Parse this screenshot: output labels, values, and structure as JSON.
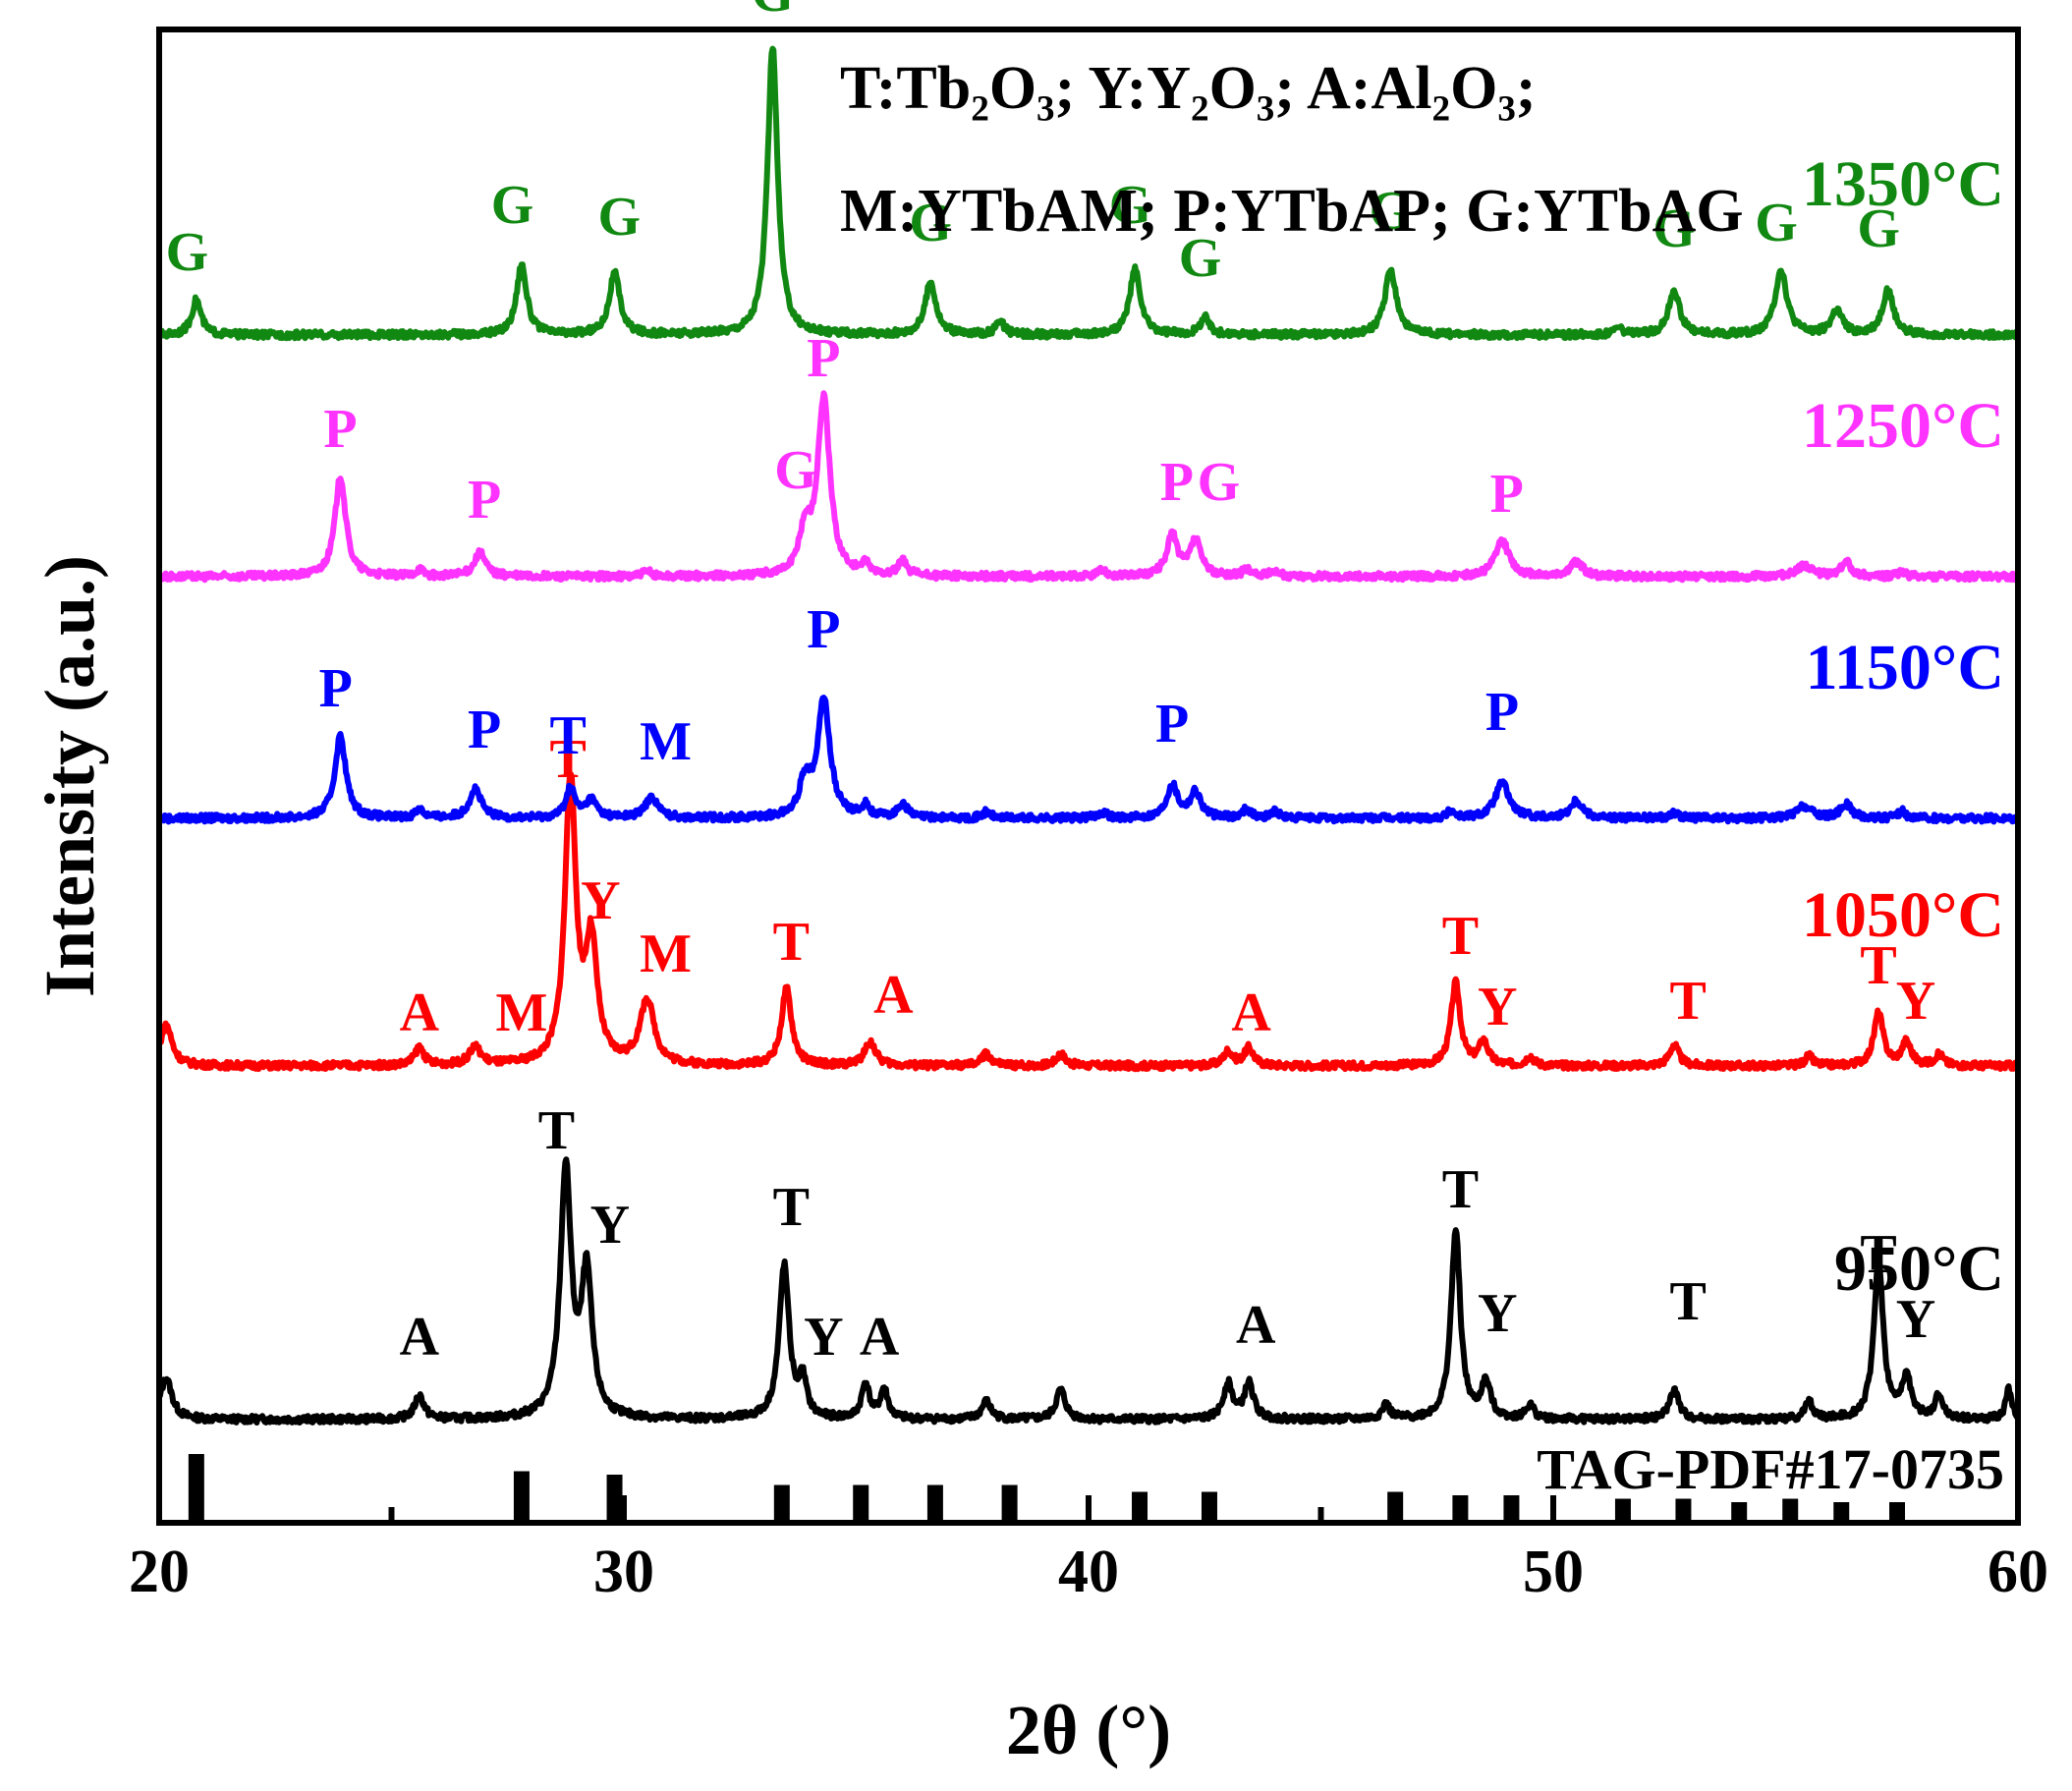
{
  "chart_data": {
    "type": "line",
    "title": "",
    "xlabel": "2θ (°)",
    "ylabel": "Intensity (a.u.)",
    "xlim": [
      20,
      60
    ],
    "xticks": [
      20,
      30,
      40,
      50,
      60
    ],
    "legend_lines": [
      "T:Tb₂O₃;   Y:Y₂O₃;   A:Al₂O₃;",
      "M:YTbAM; P:YTbAP; G:YTbAG"
    ],
    "reference": {
      "name": "TAG-PDF#17-0735",
      "color": "#000000",
      "peaks": [
        {
          "x": 20.8,
          "h": 1.0
        },
        {
          "x": 27.8,
          "h": 0.75
        },
        {
          "x": 29.8,
          "h": 0.7
        },
        {
          "x": 33.4,
          "h": 0.55
        },
        {
          "x": 35.1,
          "h": 0.55
        },
        {
          "x": 36.7,
          "h": 0.55
        },
        {
          "x": 38.3,
          "h": 0.55
        },
        {
          "x": 41.1,
          "h": 0.45
        },
        {
          "x": 42.6,
          "h": 0.45
        },
        {
          "x": 46.6,
          "h": 0.45
        },
        {
          "x": 48.0,
          "h": 0.4
        },
        {
          "x": 49.1,
          "h": 0.4
        },
        {
          "x": 51.5,
          "h": 0.35
        },
        {
          "x": 52.8,
          "h": 0.35
        },
        {
          "x": 54.0,
          "h": 0.3
        },
        {
          "x": 55.1,
          "h": 0.35
        },
        {
          "x": 56.2,
          "h": 0.3
        },
        {
          "x": 57.4,
          "h": 0.3
        }
      ]
    },
    "series": [
      {
        "name": "950°C",
        "color": "#000000",
        "baseline": 0,
        "peaks": [
          {
            "x": 20.15,
            "h": 0.35,
            "w": 0.15
          },
          {
            "x": 25.6,
            "h": 0.2,
            "w": 0.12
          },
          {
            "x": 28.75,
            "h": 2.1,
            "w": 0.14
          },
          {
            "x": 29.2,
            "h": 1.2,
            "w": 0.14
          },
          {
            "x": 33.45,
            "h": 1.3,
            "w": 0.13
          },
          {
            "x": 33.85,
            "h": 0.3,
            "w": 0.1
          },
          {
            "x": 35.2,
            "h": 0.3,
            "w": 0.1
          },
          {
            "x": 35.6,
            "h": 0.25,
            "w": 0.1
          },
          {
            "x": 37.8,
            "h": 0.15,
            "w": 0.12
          },
          {
            "x": 39.4,
            "h": 0.25,
            "w": 0.12
          },
          {
            "x": 43.0,
            "h": 0.3,
            "w": 0.12
          },
          {
            "x": 43.45,
            "h": 0.3,
            "w": 0.12
          },
          {
            "x": 46.4,
            "h": 0.12,
            "w": 0.1
          },
          {
            "x": 47.9,
            "h": 1.6,
            "w": 0.12
          },
          {
            "x": 48.55,
            "h": 0.3,
            "w": 0.12
          },
          {
            "x": 49.5,
            "h": 0.12,
            "w": 0.1
          },
          {
            "x": 52.6,
            "h": 0.25,
            "w": 0.12
          },
          {
            "x": 55.5,
            "h": 0.15,
            "w": 0.1
          },
          {
            "x": 57.0,
            "h": 1.35,
            "w": 0.12
          },
          {
            "x": 57.6,
            "h": 0.35,
            "w": 0.12
          },
          {
            "x": 58.3,
            "h": 0.2,
            "w": 0.1
          },
          {
            "x": 59.8,
            "h": 0.25,
            "w": 0.08
          }
        ],
        "labels": [
          {
            "text": "A",
            "x": 25.6,
            "y": 0.55
          },
          {
            "text": "T",
            "x": 28.55,
            "y": 2.3
          },
          {
            "text": "Y",
            "x": 29.7,
            "y": 1.5
          },
          {
            "text": "T",
            "x": 33.6,
            "y": 1.65
          },
          {
            "text": "Y",
            "x": 34.3,
            "y": 0.55
          },
          {
            "text": "A",
            "x": 35.5,
            "y": 0.55
          },
          {
            "text": "A",
            "x": 43.6,
            "y": 0.65
          },
          {
            "text": "T",
            "x": 48.0,
            "y": 1.8
          },
          {
            "text": "Y",
            "x": 48.8,
            "y": 0.75
          },
          {
            "text": "T",
            "x": 52.9,
            "y": 0.85
          },
          {
            "text": "T",
            "x": 57.0,
            "y": 1.25
          },
          {
            "text": "Y",
            "x": 57.8,
            "y": 0.7
          }
        ]
      },
      {
        "name": "1050°C",
        "color": "#ff0000",
        "baseline": 3.0,
        "peaks": [
          {
            "x": 20.15,
            "h": 0.35,
            "w": 0.15
          },
          {
            "x": 25.6,
            "h": 0.15,
            "w": 0.12
          },
          {
            "x": 26.8,
            "h": 0.15,
            "w": 0.15
          },
          {
            "x": 28.85,
            "h": 2.4,
            "w": 0.14
          },
          {
            "x": 29.3,
            "h": 1.0,
            "w": 0.15
          },
          {
            "x": 30.5,
            "h": 0.55,
            "w": 0.18
          },
          {
            "x": 33.5,
            "h": 0.65,
            "w": 0.13
          },
          {
            "x": 35.3,
            "h": 0.2,
            "w": 0.14
          },
          {
            "x": 37.8,
            "h": 0.1,
            "w": 0.12
          },
          {
            "x": 39.4,
            "h": 0.1,
            "w": 0.12
          },
          {
            "x": 43.0,
            "h": 0.12,
            "w": 0.12
          },
          {
            "x": 43.45,
            "h": 0.15,
            "w": 0.12
          },
          {
            "x": 47.9,
            "h": 0.7,
            "w": 0.12
          },
          {
            "x": 48.5,
            "h": 0.2,
            "w": 0.12
          },
          {
            "x": 49.5,
            "h": 0.08,
            "w": 0.1
          },
          {
            "x": 52.6,
            "h": 0.18,
            "w": 0.12
          },
          {
            "x": 55.5,
            "h": 0.08,
            "w": 0.1
          },
          {
            "x": 57.0,
            "h": 0.45,
            "w": 0.12
          },
          {
            "x": 57.6,
            "h": 0.2,
            "w": 0.12
          },
          {
            "x": 58.3,
            "h": 0.1,
            "w": 0.1
          }
        ],
        "labels": [
          {
            "text": "A",
            "x": 25.6,
            "y": 0.3
          },
          {
            "text": "M",
            "x": 27.8,
            "y": 0.3
          },
          {
            "text": "T",
            "x": 28.8,
            "y": 2.45
          },
          {
            "text": "Y",
            "x": 29.5,
            "y": 1.25
          },
          {
            "text": "M",
            "x": 30.9,
            "y": 0.8
          },
          {
            "text": "T",
            "x": 33.6,
            "y": 0.9
          },
          {
            "text": "A",
            "x": 35.8,
            "y": 0.45
          },
          {
            "text": "A",
            "x": 43.5,
            "y": 0.3
          },
          {
            "text": "T",
            "x": 48.0,
            "y": 0.95
          },
          {
            "text": "Y",
            "x": 48.8,
            "y": 0.35
          },
          {
            "text": "T",
            "x": 52.9,
            "y": 0.4
          },
          {
            "text": "T",
            "x": 57.0,
            "y": 0.7
          },
          {
            "text": "Y",
            "x": 57.8,
            "y": 0.4
          }
        ]
      },
      {
        "name": "1150°C",
        "color": "#0000ff",
        "baseline": 5.1,
        "peaks": [
          {
            "x": 23.9,
            "h": 0.7,
            "w": 0.14
          },
          {
            "x": 25.6,
            "h": 0.08,
            "w": 0.1
          },
          {
            "x": 26.8,
            "h": 0.25,
            "w": 0.15
          },
          {
            "x": 28.85,
            "h": 0.25,
            "w": 0.12
          },
          {
            "x": 29.3,
            "h": 0.15,
            "w": 0.14
          },
          {
            "x": 30.6,
            "h": 0.18,
            "w": 0.16
          },
          {
            "x": 33.9,
            "h": 0.3,
            "w": 0.14
          },
          {
            "x": 34.3,
            "h": 1.0,
            "w": 0.16
          },
          {
            "x": 35.2,
            "h": 0.1,
            "w": 0.1
          },
          {
            "x": 36.0,
            "h": 0.12,
            "w": 0.12
          },
          {
            "x": 37.8,
            "h": 0.05,
            "w": 0.1
          },
          {
            "x": 40.3,
            "h": 0.05,
            "w": 0.12
          },
          {
            "x": 41.8,
            "h": 0.28,
            "w": 0.14
          },
          {
            "x": 42.3,
            "h": 0.22,
            "w": 0.14
          },
          {
            "x": 43.4,
            "h": 0.08,
            "w": 0.1
          },
          {
            "x": 44.0,
            "h": 0.06,
            "w": 0.1
          },
          {
            "x": 47.8,
            "h": 0.06,
            "w": 0.1
          },
          {
            "x": 48.9,
            "h": 0.3,
            "w": 0.18
          },
          {
            "x": 50.5,
            "h": 0.15,
            "w": 0.16
          },
          {
            "x": 52.6,
            "h": 0.05,
            "w": 0.1
          },
          {
            "x": 55.4,
            "h": 0.1,
            "w": 0.18
          },
          {
            "x": 56.3,
            "h": 0.12,
            "w": 0.14
          },
          {
            "x": 57.5,
            "h": 0.06,
            "w": 0.1
          }
        ],
        "labels": [
          {
            "text": "P",
            "x": 23.8,
            "y": 0.95
          },
          {
            "text": "P",
            "x": 27.0,
            "y": 0.6
          },
          {
            "text": "T",
            "x": 28.8,
            "y": 0.55
          },
          {
            "text": "M",
            "x": 30.9,
            "y": 0.5
          },
          {
            "text": "P",
            "x": 34.3,
            "y": 1.45
          },
          {
            "text": "P",
            "x": 41.8,
            "y": 0.65
          },
          {
            "text": "P",
            "x": 48.9,
            "y": 0.75
          }
        ]
      },
      {
        "name": "1250°C",
        "color": "#ff33ff",
        "baseline": 7.15,
        "peaks": [
          {
            "x": 23.9,
            "h": 0.85,
            "w": 0.14
          },
          {
            "x": 25.6,
            "h": 0.06,
            "w": 0.1
          },
          {
            "x": 26.9,
            "h": 0.2,
            "w": 0.15
          },
          {
            "x": 30.5,
            "h": 0.04,
            "w": 0.12
          },
          {
            "x": 33.9,
            "h": 0.35,
            "w": 0.14
          },
          {
            "x": 34.3,
            "h": 1.5,
            "w": 0.16
          },
          {
            "x": 35.2,
            "h": 0.08,
            "w": 0.1
          },
          {
            "x": 36.0,
            "h": 0.12,
            "w": 0.12
          },
          {
            "x": 40.3,
            "h": 0.05,
            "w": 0.12
          },
          {
            "x": 41.8,
            "h": 0.35,
            "w": 0.14
          },
          {
            "x": 42.3,
            "h": 0.3,
            "w": 0.14
          },
          {
            "x": 43.4,
            "h": 0.06,
            "w": 0.1
          },
          {
            "x": 44.0,
            "h": 0.05,
            "w": 0.1
          },
          {
            "x": 48.9,
            "h": 0.3,
            "w": 0.18
          },
          {
            "x": 50.5,
            "h": 0.12,
            "w": 0.16
          },
          {
            "x": 55.4,
            "h": 0.1,
            "w": 0.18
          },
          {
            "x": 56.3,
            "h": 0.12,
            "w": 0.14
          },
          {
            "x": 57.5,
            "h": 0.04,
            "w": 0.1
          }
        ],
        "labels": [
          {
            "text": "P",
            "x": 23.9,
            "y": 1.1
          },
          {
            "text": "P",
            "x": 27.0,
            "y": 0.5
          },
          {
            "text": "G",
            "x": 33.7,
            "y": 0.75
          },
          {
            "text": "P",
            "x": 34.3,
            "y": 1.7
          },
          {
            "text": "P",
            "x": 41.9,
            "y": 0.65
          },
          {
            "text": "G",
            "x": 42.8,
            "y": 0.65
          },
          {
            "text": "P",
            "x": 49.0,
            "y": 0.55
          }
        ]
      },
      {
        "name": "1350°C",
        "color": "#118811",
        "baseline": 9.2,
        "peaks": [
          {
            "x": 20.8,
            "h": 0.3,
            "w": 0.12
          },
          {
            "x": 27.8,
            "h": 0.6,
            "w": 0.13
          },
          {
            "x": 29.8,
            "h": 0.52,
            "w": 0.14
          },
          {
            "x": 33.2,
            "h": 2.45,
            "w": 0.13
          },
          {
            "x": 36.6,
            "h": 0.45,
            "w": 0.14
          },
          {
            "x": 38.1,
            "h": 0.1,
            "w": 0.12
          },
          {
            "x": 41.0,
            "h": 0.55,
            "w": 0.14
          },
          {
            "x": 42.5,
            "h": 0.15,
            "w": 0.12
          },
          {
            "x": 46.5,
            "h": 0.55,
            "w": 0.15
          },
          {
            "x": 51.4,
            "h": 0.06,
            "w": 0.12
          },
          {
            "x": 52.6,
            "h": 0.38,
            "w": 0.14
          },
          {
            "x": 54.9,
            "h": 0.55,
            "w": 0.15
          },
          {
            "x": 56.1,
            "h": 0.2,
            "w": 0.14
          },
          {
            "x": 57.2,
            "h": 0.38,
            "w": 0.14
          }
        ],
        "labels": [
          {
            "text": "G",
            "x": 20.6,
            "y": 0.55
          },
          {
            "text": "G",
            "x": 27.6,
            "y": 0.95
          },
          {
            "text": "G",
            "x": 29.9,
            "y": 0.85
          },
          {
            "text": "G",
            "x": 33.2,
            "y": 2.75
          },
          {
            "text": "G",
            "x": 36.6,
            "y": 0.8
          },
          {
            "text": "G",
            "x": 40.9,
            "y": 0.95
          },
          {
            "text": "G",
            "x": 42.4,
            "y": 0.5
          },
          {
            "text": "G",
            "x": 46.5,
            "y": 0.9
          },
          {
            "text": "G",
            "x": 52.6,
            "y": 0.75
          },
          {
            "text": "G",
            "x": 54.8,
            "y": 0.8
          },
          {
            "text": "G",
            "x": 57.0,
            "y": 0.75
          }
        ]
      }
    ]
  }
}
